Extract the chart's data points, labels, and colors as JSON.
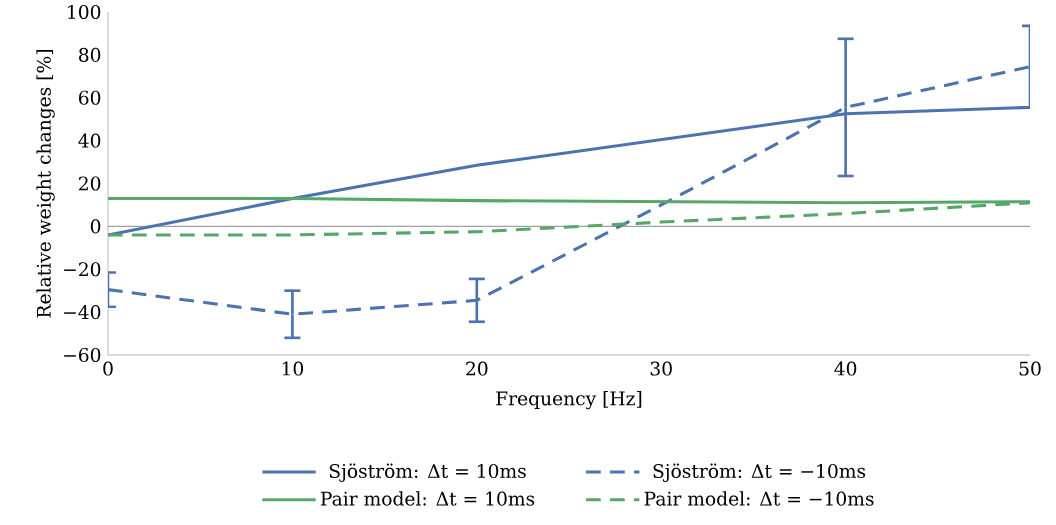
{
  "chart_data": {
    "type": "line",
    "xlabel": "Frequency [Hz]",
    "ylabel": "Relative weight changes [%]",
    "x": [
      0,
      10,
      20,
      30,
      40,
      50
    ],
    "series": [
      {
        "name": "Sjöström: Δt = 10ms",
        "color": "#4c72b0",
        "line_style": "solid",
        "values": [
          -4,
          13,
          28.5,
          40.5,
          52.5,
          55.5
        ]
      },
      {
        "name": "Sjöström: Δt = −10ms",
        "color": "#4c72b0",
        "line_style": "dashed",
        "values": [
          -29.5,
          -41,
          -34.5,
          10,
          55.5,
          74.5
        ],
        "errors": [
          8,
          11,
          10,
          null,
          32,
          19
        ]
      },
      {
        "name": "Pair model: Δt = 10ms",
        "color": "#55a868",
        "line_style": "solid",
        "values": [
          13,
          13,
          12,
          11.5,
          11,
          11.5
        ]
      },
      {
        "name": "Pair model: Δt = −10ms",
        "color": "#55a868",
        "line_style": "dashed",
        "values": [
          -4,
          -4,
          -2.5,
          2,
          6,
          11
        ]
      }
    ],
    "xlim": [
      0,
      50
    ],
    "ylim": [
      -60,
      100
    ],
    "xticks": [
      0,
      10,
      20,
      30,
      40,
      50
    ],
    "yticks": [
      {
        "value": -60,
        "label": "−60"
      },
      {
        "value": -40,
        "label": "−40"
      },
      {
        "value": -20,
        "label": "−20"
      },
      0,
      20,
      40,
      60,
      80,
      100
    ],
    "ref_lines": [
      {
        "axis": "y",
        "value": 0,
        "color": "#a0a0a0"
      }
    ],
    "legend": "bottom"
  }
}
